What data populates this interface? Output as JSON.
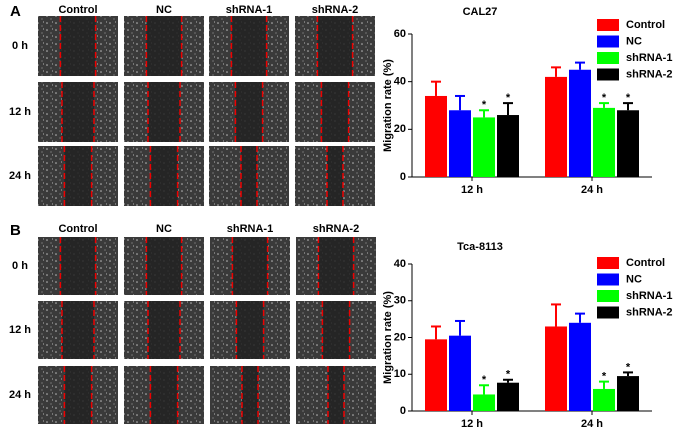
{
  "panels": [
    {
      "label": "A",
      "columns": [
        "Control",
        "NC",
        "shRNA-1",
        "shRNA-2"
      ],
      "rows": [
        "0 h",
        "12 h",
        "24 h"
      ]
    },
    {
      "label": "B",
      "columns": [
        "Control",
        "NC",
        "shRNA-1",
        "shRNA-2"
      ],
      "rows": [
        "0 h",
        "12 h",
        "24 h"
      ]
    }
  ],
  "chart_data": [
    {
      "type": "bar",
      "title": "CAL27",
      "ylabel": "Migration rate (%)",
      "categories": [
        "12 h",
        "24 h"
      ],
      "ylim": [
        0,
        60
      ],
      "yticks": [
        0,
        20,
        40,
        60
      ],
      "series": [
        {
          "name": "Control",
          "color": "#ff0000",
          "values": [
            34,
            42
          ],
          "errors": [
            6,
            4
          ]
        },
        {
          "name": "NC",
          "color": "#0000ff",
          "values": [
            28,
            45
          ],
          "errors": [
            6,
            3
          ]
        },
        {
          "name": "shRNA-1",
          "color": "#00ff00",
          "values": [
            25,
            29
          ],
          "errors": [
            3,
            2
          ],
          "significance": [
            "*",
            "*"
          ]
        },
        {
          "name": "shRNA-2",
          "color": "#000000",
          "values": [
            26,
            28
          ],
          "errors": [
            5,
            3
          ],
          "significance": [
            "*",
            "*"
          ]
        }
      ]
    },
    {
      "type": "bar",
      "title": "Tca-8113",
      "ylabel": "Migration rate (%)",
      "categories": [
        "12 h",
        "24 h"
      ],
      "ylim": [
        0,
        40
      ],
      "yticks": [
        0,
        10,
        20,
        30,
        40
      ],
      "series": [
        {
          "name": "Control",
          "color": "#ff0000",
          "values": [
            19.5,
            23
          ],
          "errors": [
            3.5,
            6
          ]
        },
        {
          "name": "NC",
          "color": "#0000ff",
          "values": [
            20.5,
            24
          ],
          "errors": [
            4,
            2.5
          ]
        },
        {
          "name": "shRNA-1",
          "color": "#00ff00",
          "values": [
            4.5,
            6
          ],
          "errors": [
            2.5,
            2
          ],
          "significance": [
            "*",
            "*"
          ]
        },
        {
          "name": "shRNA-2",
          "color": "#000000",
          "values": [
            7.7,
            9.5
          ],
          "errors": [
            0.8,
            1
          ],
          "significance": [
            "*",
            "*"
          ]
        }
      ]
    }
  ]
}
